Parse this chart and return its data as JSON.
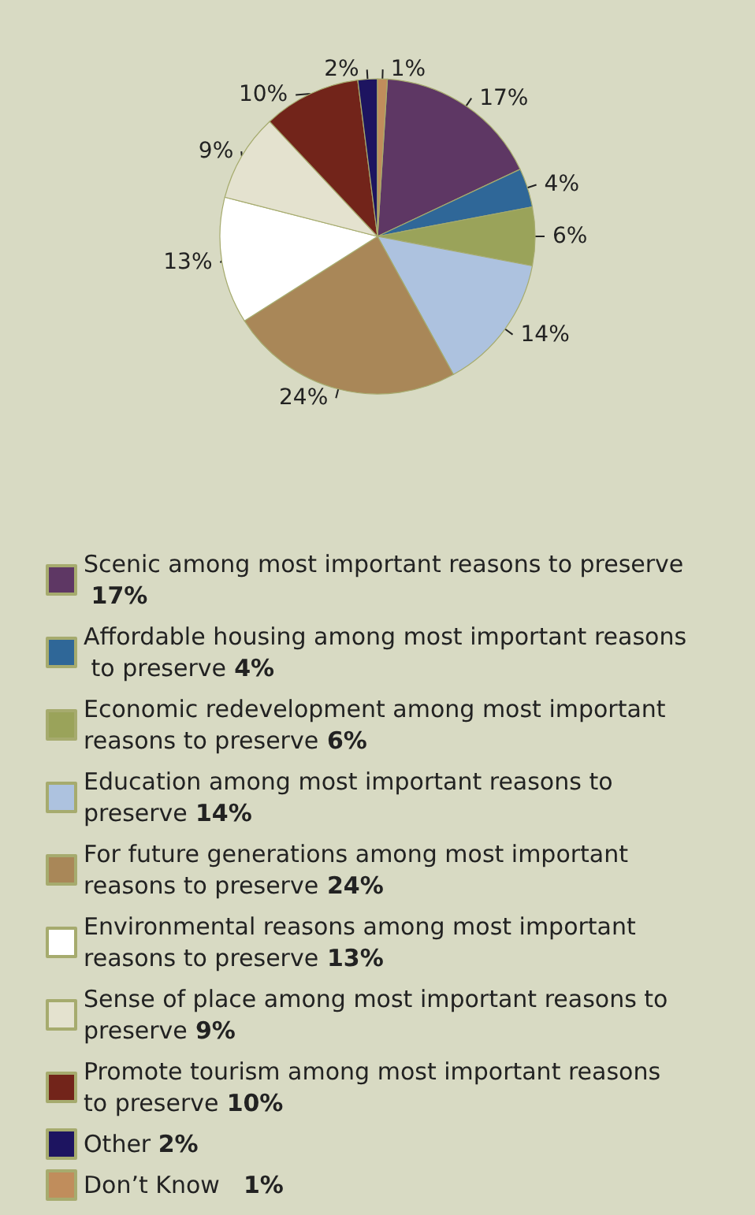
{
  "chart_data": {
    "type": "pie",
    "categories": [
      "Scenic among most important reasons to preserve",
      "Affordable housing among most important reasons to preserve",
      "Economic redevelopment among most important reasons to preserve",
      "Education among most important reasons to preserve",
      "For future generations among most important reasons to preserve",
      "Environmental reasons among most important reasons to preserve",
      "Sense of place among most important reasons to preserve",
      "Promote tourism among most important reasons to preserve",
      "Other",
      "Don’t Know"
    ],
    "values": [
      17,
      4,
      6,
      14,
      24,
      13,
      9,
      10,
      2,
      1
    ],
    "value_labels": [
      "17%",
      "4%",
      "6%",
      "14%",
      "24%",
      "13%",
      "9%",
      "10%",
      "2%",
      "1%"
    ],
    "colors": [
      "#5e3764",
      "#2f6798",
      "#9aa35a",
      "#adc2df",
      "#a98758",
      "#ffffff",
      "#e4e2cf",
      "#72241a",
      "#1d1460",
      "#c08d5c"
    ],
    "legend": "bottom"
  }
}
